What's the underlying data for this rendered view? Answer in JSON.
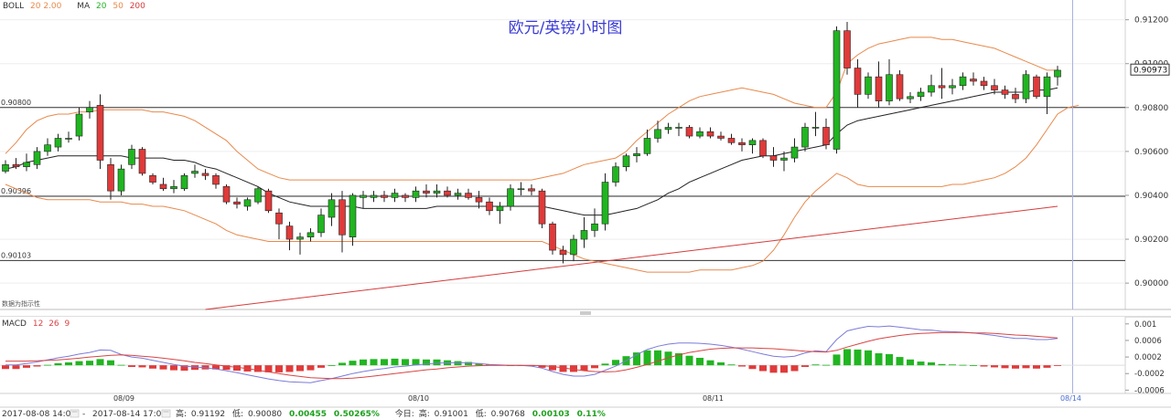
{
  "indicator_bar": {
    "boll_label": "BOLL",
    "boll_params": "20 2.00",
    "ma_label": "MA",
    "ma_p1": "20",
    "ma_p2": "50",
    "ma_p3": "200"
  },
  "macd_bar": {
    "label": "MACD",
    "p1": "12",
    "p2": "26",
    "p3": "9"
  },
  "source_note": "数据为指示性",
  "colors": {
    "up": "#21b521",
    "down": "#e03a3a",
    "boll": "#e8894c",
    "ma": "#222222",
    "ma200": "#d43b3b",
    "dif": "#7b7bd9",
    "dea": "#d94444",
    "title": "#3a3ad6",
    "vline": "#aab0e0"
  },
  "footer": {
    "start": "2017-08-08 14:00",
    "end": "2017-08-14 17:00",
    "high_label": "高:",
    "high_value": "0.91192",
    "low_label": "低:",
    "low_value": "0.90080",
    "change_value": "0.00455",
    "change_pct": "0.50265%",
    "today_label": "今日:",
    "today_high_label": "高:",
    "today_high_value": "0.91001",
    "today_low_label": "低:",
    "today_low_value": "0.90768",
    "today_change": "0.00103",
    "today_pct": "0.11%"
  },
  "chart_data": {
    "type": "candlestick",
    "title": "欧元/英镑小时图",
    "y_ticks": [
      "0.91200",
      "0.91000",
      "0.90800",
      "0.90600",
      "0.90400",
      "0.90200",
      "0.90000"
    ],
    "y_tick_values": [
      0.912,
      0.91,
      0.908,
      0.906,
      0.904,
      0.902,
      0.9
    ],
    "ylim": [
      0.8988,
      0.9129
    ],
    "last_price": "0.90973",
    "last_price_value": 0.90973,
    "hlines": [
      {
        "label": "0.90800",
        "value": 0.908
      },
      {
        "label": "0.90396",
        "value": 0.90396
      },
      {
        "label": "0.90103",
        "value": 0.90103
      }
    ],
    "x_labels": [
      {
        "label": "08/09",
        "bar": 11
      },
      {
        "label": "08/10",
        "bar": 39
      },
      {
        "label": "08/11",
        "bar": 67
      },
      {
        "label": "08/14",
        "bar": 101
      }
    ],
    "vline_bar": 101,
    "candles": [
      [
        0.9051,
        0.9056,
        0.905,
        0.9054
      ],
      [
        0.9054,
        0.9057,
        0.9052,
        0.9053
      ],
      [
        0.9053,
        0.9059,
        0.9051,
        0.9055
      ],
      [
        0.9054,
        0.9062,
        0.9052,
        0.906
      ],
      [
        0.906,
        0.9066,
        0.9058,
        0.9063
      ],
      [
        0.9062,
        0.9068,
        0.906,
        0.9066
      ],
      [
        0.9066,
        0.9069,
        0.9064,
        0.9066
      ],
      [
        0.9067,
        0.908,
        0.9065,
        0.9077
      ],
      [
        0.9078,
        0.9083,
        0.9075,
        0.908
      ],
      [
        0.9081,
        0.9086,
        0.9052,
        0.9056
      ],
      [
        0.9054,
        0.9057,
        0.9038,
        0.9042
      ],
      [
        0.9042,
        0.9054,
        0.904,
        0.9052
      ],
      [
        0.9054,
        0.9063,
        0.9052,
        0.9061
      ],
      [
        0.9061,
        0.9062,
        0.9049,
        0.905
      ],
      [
        0.9049,
        0.905,
        0.9045,
        0.9046
      ],
      [
        0.9045,
        0.9048,
        0.9042,
        0.9043
      ],
      [
        0.9043,
        0.9047,
        0.9041,
        0.9044
      ],
      [
        0.9043,
        0.905,
        0.9042,
        0.9049
      ],
      [
        0.905,
        0.9054,
        0.9048,
        0.9051
      ],
      [
        0.905,
        0.9052,
        0.9047,
        0.9049
      ],
      [
        0.9049,
        0.905,
        0.9043,
        0.9045
      ],
      [
        0.9044,
        0.9045,
        0.9036,
        0.9037
      ],
      [
        0.9037,
        0.9039,
        0.9034,
        0.9036
      ],
      [
        0.9035,
        0.9039,
        0.9033,
        0.9038
      ],
      [
        0.9037,
        0.9044,
        0.9036,
        0.9043
      ],
      [
        0.9042,
        0.9043,
        0.9032,
        0.9033
      ],
      [
        0.9032,
        0.9034,
        0.902,
        0.9027
      ],
      [
        0.9026,
        0.9028,
        0.9015,
        0.902
      ],
      [
        0.902,
        0.9023,
        0.9013,
        0.9021
      ],
      [
        0.9021,
        0.9025,
        0.9019,
        0.9023
      ],
      [
        0.9023,
        0.9034,
        0.9021,
        0.9031
      ],
      [
        0.903,
        0.9041,
        0.9026,
        0.9038
      ],
      [
        0.9038,
        0.9042,
        0.9014,
        0.9022
      ],
      [
        0.9021,
        0.9041,
        0.9017,
        0.904
      ],
      [
        0.9039,
        0.9042,
        0.9034,
        0.904
      ],
      [
        0.9039,
        0.9042,
        0.9037,
        0.904
      ],
      [
        0.904,
        0.9042,
        0.9037,
        0.9039
      ],
      [
        0.9039,
        0.9043,
        0.9037,
        0.9041
      ],
      [
        0.904,
        0.9041,
        0.9037,
        0.9039
      ],
      [
        0.9039,
        0.9044,
        0.9037,
        0.9042
      ],
      [
        0.9042,
        0.9045,
        0.9039,
        0.9041
      ],
      [
        0.9041,
        0.9045,
        0.9039,
        0.9042
      ],
      [
        0.9042,
        0.9044,
        0.9039,
        0.904
      ],
      [
        0.904,
        0.9043,
        0.9038,
        0.9041
      ],
      [
        0.9041,
        0.9043,
        0.9038,
        0.9039
      ],
      [
        0.9039,
        0.9042,
        0.9034,
        0.9037
      ],
      [
        0.9037,
        0.9039,
        0.9031,
        0.9033
      ],
      [
        0.9033,
        0.9037,
        0.9027,
        0.9035
      ],
      [
        0.9035,
        0.9045,
        0.9033,
        0.9043
      ],
      [
        0.9043,
        0.9046,
        0.904,
        0.9043
      ],
      [
        0.9043,
        0.9045,
        0.904,
        0.9042
      ],
      [
        0.9042,
        0.9043,
        0.9025,
        0.9027
      ],
      [
        0.9027,
        0.9028,
        0.9013,
        0.9015
      ],
      [
        0.9015,
        0.9017,
        0.9009,
        0.9013
      ],
      [
        0.9013,
        0.9022,
        0.901,
        0.902
      ],
      [
        0.902,
        0.903,
        0.9016,
        0.9024
      ],
      [
        0.9024,
        0.9034,
        0.9021,
        0.9027
      ],
      [
        0.9027,
        0.905,
        0.9024,
        0.9046
      ],
      [
        0.9046,
        0.9055,
        0.9044,
        0.9053
      ],
      [
        0.9053,
        0.9059,
        0.9051,
        0.9058
      ],
      [
        0.9058,
        0.9062,
        0.9055,
        0.9059
      ],
      [
        0.9059,
        0.907,
        0.9058,
        0.9066
      ],
      [
        0.9066,
        0.9074,
        0.9064,
        0.907
      ],
      [
        0.907,
        0.9073,
        0.9068,
        0.9071
      ],
      [
        0.9071,
        0.9073,
        0.9067,
        0.9071
      ],
      [
        0.9071,
        0.9072,
        0.9066,
        0.9067
      ],
      [
        0.9067,
        0.9071,
        0.9066,
        0.9069
      ],
      [
        0.9069,
        0.9071,
        0.9066,
        0.9067
      ],
      [
        0.9067,
        0.9069,
        0.9065,
        0.9066
      ],
      [
        0.9066,
        0.9068,
        0.9063,
        0.9064
      ],
      [
        0.9064,
        0.9066,
        0.906,
        0.9063
      ],
      [
        0.9063,
        0.9066,
        0.9059,
        0.9065
      ],
      [
        0.9065,
        0.9066,
        0.9057,
        0.9058
      ],
      [
        0.9058,
        0.9062,
        0.9053,
        0.9056
      ],
      [
        0.9056,
        0.906,
        0.9051,
        0.9057
      ],
      [
        0.9057,
        0.9066,
        0.9055,
        0.9062
      ],
      [
        0.9062,
        0.9073,
        0.906,
        0.9071
      ],
      [
        0.9071,
        0.9078,
        0.9067,
        0.9071
      ],
      [
        0.9071,
        0.9075,
        0.9061,
        0.9063
      ],
      [
        0.9061,
        0.9117,
        0.9059,
        0.9115
      ],
      [
        0.9115,
        0.9119,
        0.9095,
        0.9098
      ],
      [
        0.9098,
        0.9102,
        0.908,
        0.9086
      ],
      [
        0.9086,
        0.9096,
        0.9084,
        0.9094
      ],
      [
        0.9094,
        0.9101,
        0.908,
        0.9083
      ],
      [
        0.9083,
        0.9102,
        0.9081,
        0.9095
      ],
      [
        0.9095,
        0.9097,
        0.9083,
        0.9084
      ],
      [
        0.9084,
        0.9087,
        0.9082,
        0.9085
      ],
      [
        0.9085,
        0.9089,
        0.9083,
        0.9087
      ],
      [
        0.9087,
        0.9095,
        0.9085,
        0.909
      ],
      [
        0.909,
        0.9098,
        0.9084,
        0.9089
      ],
      [
        0.9089,
        0.9093,
        0.9086,
        0.909
      ],
      [
        0.909,
        0.9096,
        0.9088,
        0.9094
      ],
      [
        0.9093,
        0.9096,
        0.909,
        0.9092
      ],
      [
        0.9092,
        0.9094,
        0.9088,
        0.909
      ],
      [
        0.909,
        0.9093,
        0.9086,
        0.9088
      ],
      [
        0.9088,
        0.909,
        0.9084,
        0.9086
      ],
      [
        0.9086,
        0.9089,
        0.9082,
        0.9084
      ],
      [
        0.9084,
        0.9097,
        0.9082,
        0.9095
      ],
      [
        0.9094,
        0.9095,
        0.9084,
        0.9085
      ],
      [
        0.9085,
        0.9096,
        0.9077,
        0.9094
      ],
      [
        0.9094,
        0.9099,
        0.909,
        0.9097
      ]
    ],
    "boll_upper": [
      0.9059,
      0.9064,
      0.907,
      0.9074,
      0.9076,
      0.9077,
      0.9077,
      0.9078,
      0.9078,
      0.9079,
      0.9079,
      0.9079,
      0.9079,
      0.9079,
      0.9078,
      0.9078,
      0.9077,
      0.9076,
      0.9074,
      0.9071,
      0.9068,
      0.9065,
      0.906,
      0.9056,
      0.9052,
      0.905,
      0.9048,
      0.9047,
      0.9047,
      0.9047,
      0.9047,
      0.9047,
      0.9047,
      0.9047,
      0.9047,
      0.9047,
      0.9047,
      0.9047,
      0.9047,
      0.9047,
      0.9047,
      0.9047,
      0.9047,
      0.9047,
      0.9047,
      0.9047,
      0.9047,
      0.9047,
      0.9047,
      0.9047,
      0.9047,
      0.9048,
      0.9049,
      0.905,
      0.9052,
      0.9054,
      0.9055,
      0.9056,
      0.9057,
      0.906,
      0.9065,
      0.9069,
      0.9073,
      0.9077,
      0.908,
      0.9083,
      0.9085,
      0.9086,
      0.9087,
      0.9088,
      0.9089,
      0.9088,
      0.9087,
      0.9086,
      0.9084,
      0.9082,
      0.9081,
      0.908,
      0.908,
      0.9087,
      0.91,
      0.9104,
      0.9107,
      0.9109,
      0.911,
      0.9111,
      0.9112,
      0.9112,
      0.9112,
      0.9111,
      0.9111,
      0.911,
      0.9109,
      0.9108,
      0.9107,
      0.9105,
      0.9103,
      0.9101,
      0.9099,
      0.9097,
      0.9097
    ],
    "boll_mid": [
      0.9052,
      0.9053,
      0.9055,
      0.9056,
      0.9057,
      0.9058,
      0.9058,
      0.9058,
      0.9058,
      0.9058,
      0.9058,
      0.9058,
      0.9057,
      0.9057,
      0.9057,
      0.9057,
      0.9056,
      0.9056,
      0.9055,
      0.9053,
      0.9052,
      0.905,
      0.9048,
      0.9046,
      0.9044,
      0.9041,
      0.9039,
      0.9037,
      0.9036,
      0.9035,
      0.9035,
      0.9035,
      0.9035,
      0.9035,
      0.9034,
      0.9034,
      0.9034,
      0.9034,
      0.9034,
      0.9034,
      0.9034,
      0.9035,
      0.9035,
      0.9035,
      0.9035,
      0.9035,
      0.9035,
      0.9035,
      0.9035,
      0.9035,
      0.9035,
      0.9035,
      0.9034,
      0.9033,
      0.9032,
      0.9031,
      0.9031,
      0.9031,
      0.9032,
      0.9033,
      0.9034,
      0.9036,
      0.9038,
      0.9041,
      0.9043,
      0.9046,
      0.9048,
      0.905,
      0.9052,
      0.9054,
      0.9056,
      0.9057,
      0.9058,
      0.9058,
      0.9059,
      0.906,
      0.9061,
      0.9062,
      0.9063,
      0.9068,
      0.9072,
      0.9074,
      0.9075,
      0.9076,
      0.9077,
      0.9078,
      0.9079,
      0.908,
      0.9081,
      0.9082,
      0.9083,
      0.9084,
      0.9085,
      0.9086,
      0.9087,
      0.9087,
      0.9087,
      0.9087,
      0.9088,
      0.9088,
      0.9089
    ],
    "boll_lower": [
      0.9045,
      0.9043,
      0.9041,
      0.9039,
      0.9038,
      0.9038,
      0.9038,
      0.9038,
      0.9038,
      0.9037,
      0.9037,
      0.9037,
      0.9036,
      0.9036,
      0.9035,
      0.9035,
      0.9034,
      0.9033,
      0.9031,
      0.9029,
      0.9027,
      0.9024,
      0.9022,
      0.9021,
      0.902,
      0.9019,
      0.9019,
      0.9019,
      0.9019,
      0.9019,
      0.9019,
      0.9019,
      0.9019,
      0.9019,
      0.9019,
      0.9019,
      0.9019,
      0.9019,
      0.9019,
      0.9019,
      0.9019,
      0.9019,
      0.9019,
      0.9019,
      0.9019,
      0.9019,
      0.9019,
      0.9019,
      0.9019,
      0.9019,
      0.9019,
      0.9019,
      0.9017,
      0.9015,
      0.9013,
      0.9011,
      0.901,
      0.9009,
      0.9008,
      0.9007,
      0.9006,
      0.9005,
      0.9005,
      0.9005,
      0.9005,
      0.9005,
      0.9006,
      0.9006,
      0.9006,
      0.9006,
      0.9007,
      0.9008,
      0.901,
      0.9015,
      0.9022,
      0.903,
      0.9037,
      0.9042,
      0.9046,
      0.905,
      0.9048,
      0.9045,
      0.9044,
      0.9044,
      0.9044,
      0.9044,
      0.9044,
      0.9044,
      0.9044,
      0.9044,
      0.9045,
      0.9045,
      0.9046,
      0.9047,
      0.9048,
      0.905,
      0.9053,
      0.9057,
      0.9063,
      0.907,
      0.9077,
      0.908,
      0.9081
    ],
    "ma200": {
      "start_bar": 19,
      "start_value": 0.8988,
      "end_bar": 100,
      "end_value": 0.9035
    },
    "macd": {
      "ylim": [
        -0.00068,
        0.00115
      ],
      "y_ticks": [
        "0.001",
        "0.0006",
        "0.0002",
        "-0.0002",
        "-0.0006"
      ],
      "y_tick_values": [
        0.001,
        0.0006,
        0.0002,
        -0.0002,
        -0.0006
      ],
      "dif": [
        1e-05,
        1e-05,
        4e-05,
        8e-05,
        0.00013,
        0.00018,
        0.00022,
        0.00027,
        0.00031,
        0.00037,
        0.00036,
        0.00026,
        0.0002,
        0.00017,
        0.00012,
        7e-05,
        2e-05,
        -2e-05,
        -4e-05,
        -6e-05,
        -9e-05,
        -0.00013,
        -0.00018,
        -0.00023,
        -0.00028,
        -0.00033,
        -0.00037,
        -0.0004,
        -0.00041,
        -0.00042,
        -0.00037,
        -0.00032,
        -0.00026,
        -0.0002,
        -0.00015,
        -0.00011,
        -8e-05,
        -4e-05,
        -2e-05,
        1e-05,
        3e-05,
        5e-05,
        6e-05,
        6e-05,
        6e-05,
        4e-05,
        2e-05,
        1e-05,
        0.0,
        0.0,
        -2e-05,
        -7e-05,
        -0.00015,
        -0.00022,
        -0.00026,
        -0.00026,
        -0.00022,
        -0.00012,
        -2e-05,
        0.00011,
        0.00026,
        0.00038,
        0.00046,
        0.00051,
        0.00054,
        0.00054,
        0.00053,
        0.00051,
        0.00048,
        0.00044,
        0.00039,
        0.00033,
        0.00027,
        0.00022,
        0.0002,
        0.00022,
        0.0003,
        0.00035,
        0.00033,
        0.00062,
        0.00083,
        0.00089,
        0.00094,
        0.00093,
        0.00095,
        0.00092,
        0.00089,
        0.00086,
        0.00085,
        0.00082,
        0.00081,
        0.0008,
        0.00078,
        0.00075,
        0.00072,
        0.00068,
        0.00065,
        0.00065,
        0.00062,
        0.00062,
        0.00065
      ],
      "dea": [
        0.0001,
        0.0001,
        0.0001,
        0.00011,
        0.00012,
        0.00013,
        0.00015,
        0.00017,
        0.0002,
        0.00022,
        0.00024,
        0.00025,
        0.00024,
        0.00022,
        0.0002,
        0.00017,
        0.00014,
        0.00011,
        7e-05,
        4e-05,
        1e-05,
        -2e-05,
        -5e-05,
        -8e-05,
        -0.00012,
        -0.00016,
        -0.0002,
        -0.00024,
        -0.00027,
        -0.0003,
        -0.00031,
        -0.00032,
        -0.00032,
        -0.00031,
        -0.00029,
        -0.00026,
        -0.00023,
        -0.0002,
        -0.00017,
        -0.00014,
        -0.00011,
        -9e-05,
        -6e-05,
        -4e-05,
        -2e-05,
        -1e-05,
        0.0,
        0.0,
        0.0,
        0.0,
        0.0,
        -1e-05,
        -3e-05,
        -6e-05,
        -0.0001,
        -0.00013,
        -0.00015,
        -0.00016,
        -0.00015,
        -0.00011,
        -5e-05,
        2e-05,
        0.0001,
        0.00018,
        0.00025,
        0.00031,
        0.00035,
        0.00039,
        0.00041,
        0.00042,
        0.00042,
        0.00042,
        0.00041,
        0.0004,
        0.00038,
        0.00036,
        0.00034,
        0.00033,
        0.00032,
        0.00036,
        0.00044,
        0.00051,
        0.00058,
        0.00064,
        0.00068,
        0.00072,
        0.00075,
        0.00077,
        0.00078,
        0.00079,
        0.00079,
        0.00079,
        0.00078,
        0.00078,
        0.00077,
        0.00075,
        0.00073,
        0.00072,
        0.0007,
        0.00068,
        0.00066
      ]
    }
  }
}
